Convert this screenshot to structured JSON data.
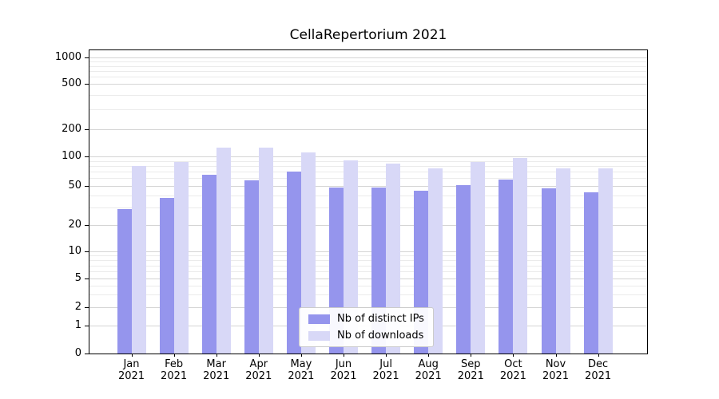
{
  "figure": {
    "background": "#ffffff"
  },
  "chart_data": {
    "type": "bar",
    "title": "CellaRepertorium 2021",
    "categories": [
      "Jan\n2021",
      "Feb\n2021",
      "Mar\n2021",
      "Apr\n2021",
      "May\n2021",
      "Jun\n2021",
      "Jul\n2021",
      "Aug\n2021",
      "Sep\n2021",
      "Oct\n2021",
      "Nov\n2021",
      "Dec\n2021"
    ],
    "series": [
      {
        "name": "Nb of distinct IPs",
        "color": "#9595ed",
        "values": [
          29,
          38,
          65,
          57,
          70,
          48,
          48,
          45,
          51,
          58,
          47,
          43
        ]
      },
      {
        "name": "Nb of downloads",
        "color": "#d8d8f7",
        "values": [
          80,
          88,
          125,
          124,
          110,
          92,
          84,
          75,
          88,
          96,
          76,
          76
        ]
      }
    ],
    "yticks": [
      0,
      1,
      2,
      5,
      10,
      20,
      50,
      100,
      200,
      500,
      1000
    ],
    "yscale": "symlog",
    "ylim": [
      0,
      1100
    ],
    "xlabel": "",
    "ylabel": "",
    "grid": true,
    "legend_position": "inside lower center"
  }
}
